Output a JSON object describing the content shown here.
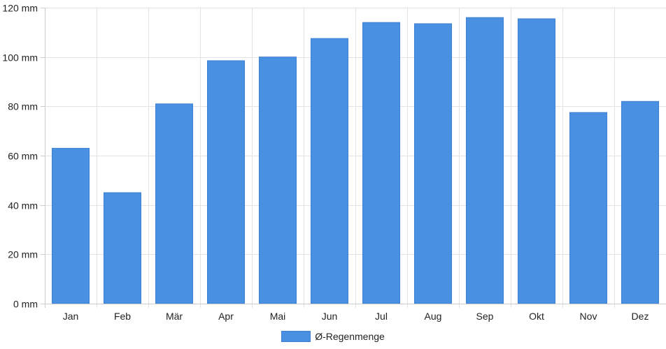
{
  "chart_data": {
    "type": "bar",
    "categories": [
      "Jan",
      "Feb",
      "Mär",
      "Apr",
      "Mai",
      "Jun",
      "Jul",
      "Aug",
      "Sep",
      "Okt",
      "Nov",
      "Dez"
    ],
    "series": [
      {
        "name": "Ø-Regenmenge",
        "values": [
          63,
          45,
          81,
          98.5,
          100,
          107.5,
          114,
          113.5,
          116,
          115.5,
          77.5,
          82
        ],
        "color": "#4a90e2"
      }
    ],
    "y_ticks": [
      0,
      20,
      40,
      60,
      80,
      100,
      120
    ],
    "y_unit": "mm",
    "ylim": [
      0,
      120
    ],
    "grid": true,
    "legend_position": "bottom"
  }
}
